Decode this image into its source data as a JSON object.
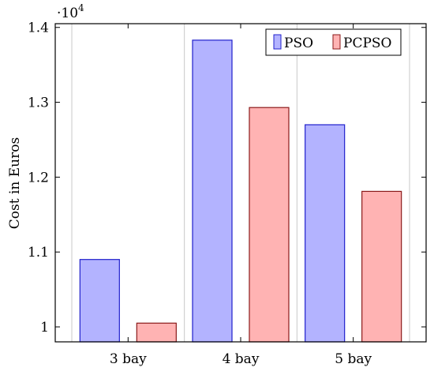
{
  "chart_data": {
    "type": "bar",
    "categories": [
      "3 bay",
      "4 bay",
      "5 bay"
    ],
    "series": [
      {
        "name": "PSO",
        "values": [
          10900,
          13830,
          12700
        ],
        "fill": "#b3b3ff",
        "stroke": "#2020cc"
      },
      {
        "name": "PCPSO",
        "values": [
          10050,
          12930,
          11810
        ],
        "fill": "#ffb3b3",
        "stroke": "#8b1a1a"
      }
    ],
    "title": "",
    "xlabel": "",
    "ylabel": "Cost in Euros",
    "ylim": [
      9800,
      14050
    ],
    "yticks": [
      10000,
      11000,
      12000,
      13000,
      14000
    ],
    "ytick_labels": [
      "1",
      "1.1",
      "1.2",
      "1.3",
      "1.4"
    ],
    "scale_factor_base": "·10",
    "scale_factor_exp": "4",
    "legend_position": "top-right",
    "grid": "vertical"
  }
}
